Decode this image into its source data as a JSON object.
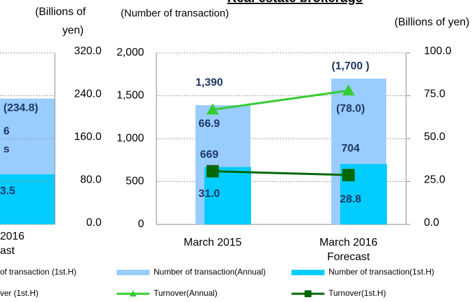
{
  "chart_data": {
    "type": "combo",
    "title": "Real estate brokerage",
    "ylabel": "(Number of transaction)",
    "y2label": "(Billions of yen)",
    "categories": [
      "March 2015",
      "March 2016 Forecast"
    ],
    "ylim": [
      0,
      2000
    ],
    "yticks": [
      0,
      500,
      {
        "value": 1000,
        "label": "1,000"
      },
      {
        "value": 1500,
        "label": "1,500"
      },
      {
        "value": 2000,
        "label": "2,000"
      }
    ],
    "y2lim": [
      0,
      100
    ],
    "y2ticks": [
      {
        "value": 0,
        "label": "0.0"
      },
      {
        "value": 25,
        "label": "25.0"
      },
      {
        "value": 50,
        "label": "50.0"
      },
      {
        "value": 75,
        "label": "75.0"
      },
      {
        "value": 100,
        "label": "100.0"
      }
    ],
    "grid": true,
    "series": [
      {
        "name": "Number of transaction(Annual)",
        "kind": "bar",
        "color": "#99ccff",
        "values": [
          1390,
          1700
        ],
        "value_labels": [
          "1,390",
          "(1,700 )"
        ]
      },
      {
        "name": "Number of transaction(1st.H)",
        "kind": "bar",
        "color": "#00ccff",
        "values": [
          669,
          704
        ],
        "value_labels": [
          "669",
          "704"
        ]
      },
      {
        "name": "Turnover(Annual)",
        "kind": "line",
        "marker": "triangle",
        "axis": "y2",
        "color": "#33cc33",
        "values": [
          66.9,
          78.0
        ],
        "value_labels": [
          "66.9",
          "(78.0)"
        ]
      },
      {
        "name": "Turnover(1st.H)",
        "kind": "line",
        "marker": "square",
        "axis": "y2",
        "color": "#006600",
        "values": [
          31.0,
          28.8
        ],
        "value_labels": [
          "31.0",
          "28.8"
        ]
      }
    ]
  },
  "left_fragment": {
    "y2label": [
      "(Billions of",
      "yen)"
    ],
    "y2lim": [
      0,
      320
    ],
    "y2ticks": [
      {
        "value": 0,
        "label": "0.0"
      },
      {
        "value": 80,
        "label": "80.0"
      },
      {
        "value": 160,
        "label": "160.0"
      },
      {
        "value": 240,
        "label": "240.0"
      },
      {
        "value": 320,
        "label": "320.0"
      }
    ],
    "bars": [
      {
        "color": "#99ccff",
        "value": 234.8,
        "value_label": "(234.8)"
      },
      {
        "color": "#00ccff",
        "value": 93.5,
        "value_label": "3.5"
      }
    ],
    "texts": [
      "6",
      "s",
      "2016",
      "ast"
    ],
    "legend": [
      "of transaction (1st.H)",
      "ver (1st.H)"
    ]
  }
}
